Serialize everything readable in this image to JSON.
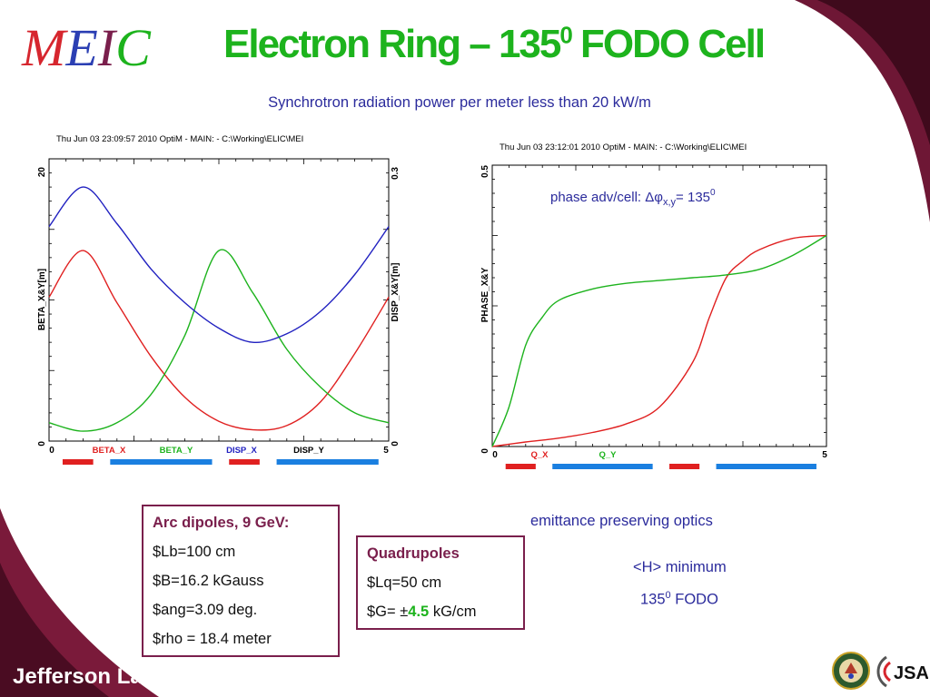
{
  "logo": {
    "letters": [
      "M",
      "E",
      "I",
      "C"
    ],
    "colors": [
      "#d6262e",
      "#2b3fb3",
      "#7a1f4c",
      "#1db31d"
    ]
  },
  "title": {
    "main": "Electron Ring – 135",
    "sup": "0",
    "tail": " FODO Cell"
  },
  "subtitle": "Synchrotron radiation power per meter less than 20 kW/m",
  "chart_data": [
    {
      "type": "line",
      "header": "Thu Jun 03 23:09:57 2010     OptiM - MAIN: - C:\\Working\\ELIC\\MEI",
      "xlim": [
        0,
        5
      ],
      "x_ticks": [
        "0",
        "5"
      ],
      "ylabel": "BETA_X&Y[m]",
      "ylim": [
        0,
        20
      ],
      "y_ticks": [
        "0",
        "20"
      ],
      "y2label": "DISP_X&Y[m]",
      "y2lim": [
        0,
        0.3
      ],
      "y2_ticks": [
        "0",
        "0.3"
      ],
      "legend": [
        "BETA_X",
        "BETA_Y",
        "DISP_X",
        "DISP_Y"
      ],
      "legend_colors": [
        "#e02020",
        "#1db31d",
        "#2020c0",
        "#000000"
      ],
      "series": [
        {
          "name": "BETA_X",
          "color": "#e02020",
          "axis": "left",
          "x": [
            0,
            0.5,
            1.0,
            1.5,
            2.0,
            2.5,
            3.0,
            3.5,
            4.0,
            4.5,
            5.0
          ],
          "y": [
            10.2,
            13.5,
            9.8,
            6.0,
            3.1,
            1.4,
            0.8,
            1.1,
            2.8,
            6.2,
            10.2
          ]
        },
        {
          "name": "BETA_Y",
          "color": "#1db31d",
          "axis": "left",
          "x": [
            0,
            0.5,
            1.0,
            1.5,
            2.0,
            2.5,
            3.0,
            3.5,
            4.0,
            4.5,
            5.0
          ],
          "y": [
            1.3,
            0.7,
            1.3,
            3.3,
            7.5,
            13.5,
            10.5,
            6.5,
            3.8,
            2.0,
            1.3
          ]
        },
        {
          "name": "DISP_X",
          "color": "#2020c0",
          "axis": "left",
          "x": [
            0,
            0.5,
            1.0,
            1.5,
            2.0,
            2.5,
            3.0,
            3.5,
            4.0,
            4.5,
            5.0
          ],
          "y": [
            15.2,
            18.0,
            15.4,
            12.2,
            9.8,
            8.0,
            7.0,
            7.6,
            9.2,
            11.8,
            15.2
          ]
        }
      ],
      "element_bars": [
        {
          "color": "#e02020",
          "from": 0.2,
          "to": 0.65
        },
        {
          "color": "#1a7fe0",
          "from": 0.9,
          "to": 2.4
        },
        {
          "color": "#e02020",
          "from": 2.65,
          "to": 3.1
        },
        {
          "color": "#1a7fe0",
          "from": 3.35,
          "to": 4.85
        }
      ]
    },
    {
      "type": "line",
      "header": "Thu Jun 03 23:12:01 2010     OptiM - MAIN: - C:\\Working\\ELIC\\MEI",
      "xlim": [
        0,
        5
      ],
      "x_ticks": [
        "0",
        "5"
      ],
      "ylabel": "PHASE_X&Y",
      "ylim": [
        0,
        0.5
      ],
      "y_ticks": [
        "0",
        "0.5"
      ],
      "legend": [
        "Q_X",
        "Q_Y"
      ],
      "legend_colors": [
        "#e02020",
        "#1db31d"
      ],
      "annotation": {
        "text": "phase adv/cell:  Δφ",
        "sub": "x,y",
        "tail": "= 135",
        "sup": "0"
      },
      "series": [
        {
          "name": "Q_X",
          "color": "#e02020",
          "x": [
            0,
            0.5,
            1.0,
            1.5,
            2.0,
            2.5,
            3.0,
            3.25,
            3.5,
            3.75,
            4.0,
            4.5,
            5.0
          ],
          "y": [
            0,
            0.008,
            0.015,
            0.025,
            0.04,
            0.07,
            0.15,
            0.23,
            0.3,
            0.33,
            0.35,
            0.37,
            0.375
          ]
        },
        {
          "name": "Q_Y",
          "color": "#1db31d",
          "x": [
            0,
            0.25,
            0.5,
            0.75,
            1.0,
            1.5,
            2.0,
            2.5,
            3.0,
            3.5,
            4.0,
            4.5,
            5.0
          ],
          "y": [
            0,
            0.07,
            0.18,
            0.23,
            0.26,
            0.28,
            0.29,
            0.295,
            0.3,
            0.305,
            0.315,
            0.34,
            0.375
          ]
        }
      ],
      "element_bars": [
        {
          "color": "#e02020",
          "from": 0.2,
          "to": 0.65
        },
        {
          "color": "#1a7fe0",
          "from": 0.9,
          "to": 2.4
        },
        {
          "color": "#e02020",
          "from": 2.65,
          "to": 3.1
        },
        {
          "color": "#1a7fe0",
          "from": 3.35,
          "to": 4.85
        }
      ]
    }
  ],
  "dipoles": {
    "heading": "Arc dipoles, 9 GeV:",
    "lines": [
      "$Lb=100 cm",
      "$B=16.2 kGauss",
      "$ang=3.09 deg.",
      "$rho = 18.4 meter"
    ]
  },
  "quads": {
    "heading": "Quadrupoles",
    "line1": "$Lq=50 cm",
    "g_prefix": "$G= ±",
    "g_value": "4.5",
    "g_unit": " kG/cm"
  },
  "notes": {
    "emittance": "emittance preserving optics",
    "minimum": "<H> minimum",
    "fodo_num": "135",
    "fodo_sup": "0",
    "fodo_tail": " FODO"
  },
  "footer": {
    "jlab": "Jefferson Lab",
    "jsa": "JSA"
  },
  "colors": {
    "dark_maroon": "#5a0f2a",
    "title_green": "#1db31d",
    "text_blue": "#2b2b9c"
  }
}
